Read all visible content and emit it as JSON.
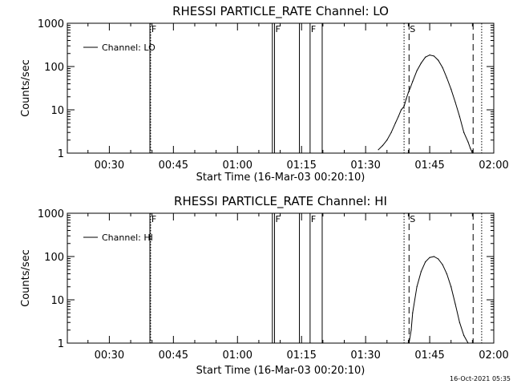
{
  "footer": {
    "timestamp": "16-Oct-2021 05:35"
  },
  "chart_data": [
    {
      "type": "line",
      "title": "RHESSI PARTICLE_RATE Channel: LO",
      "xlabel": "Start Time (16-Mar-03 00:20:10)",
      "ylabel": "Counts/sec",
      "yscale": "log",
      "xlim": [
        "00:20:10",
        "02:00:00"
      ],
      "ylim": [
        1,
        1000
      ],
      "x_ticks": [
        "00:30",
        "00:45",
        "01:00",
        "01:15",
        "01:30",
        "01:45",
        "02:00"
      ],
      "y_ticks": [
        "1",
        "10",
        "100",
        "1000"
      ],
      "legend": {
        "position": "top-left",
        "entries": [
          "Channel: LO"
        ]
      },
      "series": [
        {
          "name": "Channel: LO",
          "x": [
            "01:33:00",
            "01:34:00",
            "01:35:00",
            "01:36:00",
            "01:37:00",
            "01:37:40",
            "01:38:20",
            "01:39:00",
            "01:39:30",
            "01:40:00",
            "01:40:30",
            "01:41:00",
            "01:42:00",
            "01:43:00",
            "01:44:00",
            "01:45:00",
            "01:46:00",
            "01:47:00",
            "01:48:00",
            "01:49:00",
            "01:50:00",
            "01:51:00",
            "01:52:00",
            "01:53:00",
            "01:54:00",
            "01:54:30",
            "01:55:00"
          ],
          "y": [
            1.2,
            1.5,
            2.0,
            3.0,
            5.0,
            7.0,
            10,
            12,
            18,
            25,
            33,
            45,
            80,
            120,
            165,
            185,
            175,
            140,
            95,
            55,
            30,
            15,
            7,
            3,
            1.8,
            1.3,
            1.0
          ]
        }
      ],
      "annotations": [
        {
          "x": "00:39:30",
          "style": "solid",
          "label": ""
        },
        {
          "x": "00:39:40",
          "style": "dotted",
          "label": "F"
        },
        {
          "x": "01:08:10",
          "style": "solid",
          "label": ""
        },
        {
          "x": "01:08:40",
          "style": "solid",
          "label": "F"
        },
        {
          "x": "01:14:30",
          "style": "solid",
          "label": ""
        },
        {
          "x": "01:17:00",
          "style": "solid",
          "label": "F"
        },
        {
          "x": "01:19:50",
          "style": "solid",
          "label": ""
        },
        {
          "x": "01:39:00",
          "style": "dotted",
          "label": ""
        },
        {
          "x": "01:40:10",
          "style": "dashed",
          "label": "S"
        },
        {
          "x": "01:55:10",
          "style": "dashed",
          "label": ""
        },
        {
          "x": "01:57:10",
          "style": "dotted",
          "label": ""
        }
      ]
    },
    {
      "type": "line",
      "title": "RHESSI PARTICLE_RATE Channel: HI",
      "xlabel": "Start Time (16-Mar-03 00:20:10)",
      "ylabel": "Counts/sec",
      "yscale": "log",
      "xlim": [
        "00:20:10",
        "02:00:00"
      ],
      "ylim": [
        1,
        1000
      ],
      "x_ticks": [
        "00:30",
        "00:45",
        "01:00",
        "01:15",
        "01:30",
        "01:45",
        "02:00"
      ],
      "y_ticks": [
        "1",
        "10",
        "100",
        "1000"
      ],
      "legend": {
        "position": "top-left",
        "entries": [
          "Channel: HI"
        ]
      },
      "series": [
        {
          "name": "Channel: HI",
          "x": [
            "01:40:10",
            "01:40:40",
            "01:41:00",
            "01:42:00",
            "01:43:00",
            "01:44:00",
            "01:45:00",
            "01:46:00",
            "01:47:00",
            "01:48:00",
            "01:49:00",
            "01:50:00",
            "01:51:00",
            "01:52:00",
            "01:53:00",
            "01:54:00"
          ],
          "y": [
            1.0,
            2.0,
            5.0,
            20,
            45,
            75,
            95,
            100,
            88,
            65,
            40,
            20,
            8,
            3,
            1.5,
            1.0
          ]
        }
      ],
      "annotations": [
        {
          "x": "00:39:30",
          "style": "solid",
          "label": ""
        },
        {
          "x": "00:39:40",
          "style": "dotted",
          "label": "F"
        },
        {
          "x": "01:08:10",
          "style": "solid",
          "label": ""
        },
        {
          "x": "01:08:40",
          "style": "solid",
          "label": "F"
        },
        {
          "x": "01:14:30",
          "style": "solid",
          "label": ""
        },
        {
          "x": "01:17:00",
          "style": "solid",
          "label": "F"
        },
        {
          "x": "01:19:50",
          "style": "solid",
          "label": ""
        },
        {
          "x": "01:39:00",
          "style": "dotted",
          "label": ""
        },
        {
          "x": "01:40:10",
          "style": "dashed",
          "label": "S"
        },
        {
          "x": "01:55:10",
          "style": "dashed",
          "label": ""
        },
        {
          "x": "01:57:10",
          "style": "dotted",
          "label": ""
        }
      ]
    }
  ]
}
